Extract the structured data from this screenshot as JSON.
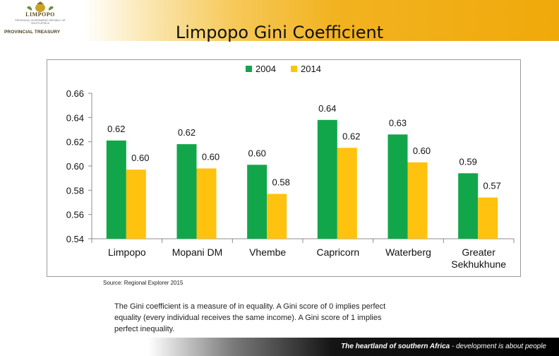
{
  "header": {
    "logo_name": "LIMPOPO",
    "logo_sub": "PROVINCIAL GOVERNMENT REPUBLIC OF SOUTH AFRICA",
    "treasury": "PROVINCIAL TREASURY"
  },
  "title": "Limpopo Gini Coefficient",
  "source": "Source: Regional Explorer 2015",
  "note": "The Gini coefficient is a measure of in equality. A Gini score of 0 implies perfect equality (every individual receives the same income). A Gini score of 1 implies perfect inequality.",
  "footer": {
    "main": "The heartland of southern Africa",
    "rest": " - development is about people"
  },
  "colors": {
    "series_2004": "#12a64a",
    "series_2014": "#ffc20e"
  },
  "chart_data": {
    "type": "bar",
    "title": "",
    "xlabel": "",
    "ylabel": "",
    "ylim": [
      0.54,
      0.66
    ],
    "yticks": [
      "0.54",
      "0.56",
      "0.58",
      "0.60",
      "0.62",
      "0.64",
      "0.66"
    ],
    "legend_position": "top-center",
    "grid": false,
    "categories": [
      "Limpopo",
      "Mopani DM",
      "Vhembe",
      "Capricorn",
      "Waterberg",
      "Greater Sekhukhune"
    ],
    "category_lines": [
      [
        "Limpopo"
      ],
      [
        "Mopani DM"
      ],
      [
        "Vhembe"
      ],
      [
        "Capricorn"
      ],
      [
        "Waterberg"
      ],
      [
        "Greater",
        "Sekhukhune"
      ]
    ],
    "series": [
      {
        "name": "2004",
        "values": [
          0.621,
          0.618,
          0.601,
          0.638,
          0.626,
          0.594
        ],
        "labels": [
          "0.62",
          "0.62",
          "0.60",
          "0.64",
          "0.63",
          "0.59"
        ]
      },
      {
        "name": "2014",
        "values": [
          0.597,
          0.598,
          0.577,
          0.615,
          0.603,
          0.574
        ],
        "labels": [
          "0.60",
          "0.60",
          "0.58",
          "0.62",
          "0.60",
          "0.57"
        ]
      }
    ]
  }
}
